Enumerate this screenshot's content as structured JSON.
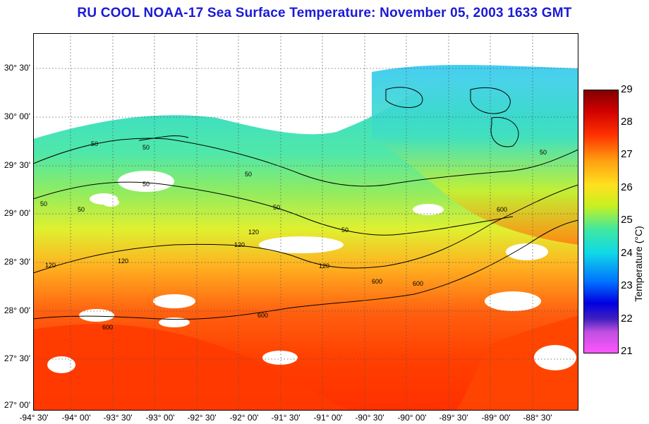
{
  "title": "RU COOL  NOAA-17  Sea Surface Temperature:  November 05, 2003 1633 GMT",
  "lat_labels": [
    "30° 30'",
    "30° 00'",
    "29° 30'",
    "29° 00'",
    "28° 30'",
    "28° 00'",
    "27° 30'",
    "27° 00'"
  ],
  "lon_labels": [
    "-94° 30'",
    "-94° 00'",
    "-93° 30'",
    "-93° 00'",
    "-92° 30'",
    "-92° 00'",
    "-91° 30'",
    "-91° 00'",
    "-90° 30'",
    "-90° 00'",
    "-89° 30'",
    "-89° 00'",
    "-88° 30'"
  ],
  "colorbar": {
    "title": "Temperature (°C)",
    "ticks": [
      "29",
      "28",
      "27",
      "26",
      "25",
      "24",
      "23",
      "22",
      "21"
    ],
    "min": 21,
    "max": 29,
    "colors": [
      "#ff55ff",
      "#8040c0",
      "#0000e0",
      "#0088ff",
      "#10d8e0",
      "#40e8a0",
      "#c8f020",
      "#ffe020",
      "#ffa010",
      "#ff3000",
      "#d00000",
      "#800000"
    ]
  },
  "contour_labels": [
    "50",
    "50",
    "50",
    "50",
    "50",
    "50",
    "50",
    "50",
    "120",
    "120",
    "120",
    "120",
    "120",
    "600",
    "600",
    "600",
    "600",
    "600",
    "50"
  ],
  "land_color": "#ffffff",
  "cloud_color": "#ffffff"
}
